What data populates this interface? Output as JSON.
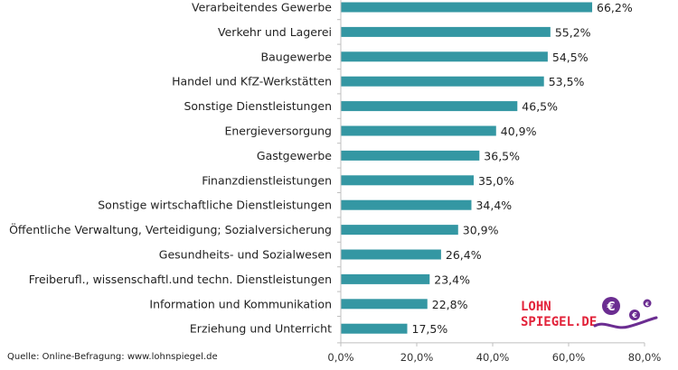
{
  "chart_data": {
    "type": "bar",
    "orientation": "horizontal",
    "categories": [
      "Verarbeitendes Gewerbe",
      "Verkehr und Lagerei",
      "Baugewerbe",
      "Handel und KfZ-Werkstätten",
      "Sonstige Dienstleistungen",
      "Energieversorgung",
      "Gastgewerbe",
      "Finanzdienstleistungen",
      "Sonstige wirtschaftliche Dienstleistungen",
      "Öffentliche Verwaltung, Verteidigung; Sozialversicherung",
      "Gesundheits- und Sozialwesen",
      "Freiberufl., wissenschaftl.und techn. Dienstleistungen",
      "Information und Kommunikation",
      "Erziehung und Unterricht"
    ],
    "values": [
      66.2,
      55.2,
      54.5,
      53.5,
      46.5,
      40.9,
      36.5,
      35.0,
      34.4,
      30.9,
      26.4,
      23.4,
      22.8,
      17.5
    ],
    "value_labels": [
      "66,2%",
      "55,2%",
      "54,5%",
      "53,5%",
      "46,5%",
      "40,9%",
      "36,5%",
      "35,0%",
      "34,4%",
      "30,9%",
      "26,4%",
      "23,4%",
      "22,8%",
      "17,5%"
    ],
    "xlim": [
      0,
      80
    ],
    "xticks": [
      0,
      20,
      40,
      60,
      80
    ],
    "xtick_labels": [
      "0,0%",
      "20,0%",
      "40,0%",
      "60,0%",
      "80,0%"
    ],
    "grid": false,
    "bar_color": "#3497a3",
    "title": "",
    "xlabel": "",
    "ylabel": ""
  },
  "source": "Quelle:  Online-Befragung:  www.lohnspiegel.de",
  "logo": {
    "line1": "LOHN",
    "line2": "SPIEGEL.DE",
    "text_color": "#e2233a",
    "accent_color": "#6b2d91"
  }
}
